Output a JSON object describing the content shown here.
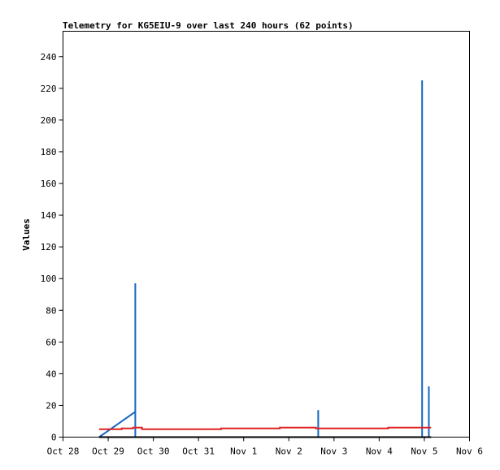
{
  "chart_data": {
    "type": "line",
    "title": "Telemetry for KG5EIU-9 over last 240 hours (62 points)",
    "xlabel": "",
    "ylabel": "Values",
    "x_ticks": [
      "Oct 28",
      "Oct 29",
      "Oct 30",
      "Oct 31",
      "Nov 1",
      "Nov 2",
      "Nov 3",
      "Nov 4",
      "Nov 5",
      "Nov 6"
    ],
    "y_ticks": [
      0,
      20,
      40,
      60,
      80,
      100,
      120,
      140,
      160,
      180,
      200,
      220,
      240
    ],
    "xlim": [
      0,
      9
    ],
    "ylim": [
      0,
      256
    ],
    "grid": false,
    "series": [
      {
        "color": "#1565c0",
        "x": [
          0.8,
          1.6,
          1.6,
          1.6,
          5.65,
          5.65,
          5.65,
          7.95,
          7.95,
          7.95,
          8.1,
          8.1,
          8.1
        ],
        "y": [
          0,
          16,
          97,
          0,
          0,
          17,
          0,
          0,
          225,
          0,
          0,
          32,
          0
        ]
      },
      {
        "color": "#e02020",
        "x": [
          0.8,
          1.3,
          1.3,
          1.55,
          1.55,
          1.75,
          1.75,
          3.5,
          3.5,
          4.8,
          4.8,
          5.6,
          5.6,
          6.2,
          6.2,
          7.2,
          7.2,
          8.15
        ],
        "y": [
          5,
          5,
          5.5,
          5.5,
          6,
          6,
          5,
          5,
          5.5,
          5.5,
          6,
          6,
          5.5,
          5.5,
          5.5,
          5.5,
          6,
          6
        ]
      },
      {
        "color": "#000000",
        "x": [
          0.8,
          8.15
        ],
        "y": [
          0,
          0
        ]
      }
    ]
  }
}
